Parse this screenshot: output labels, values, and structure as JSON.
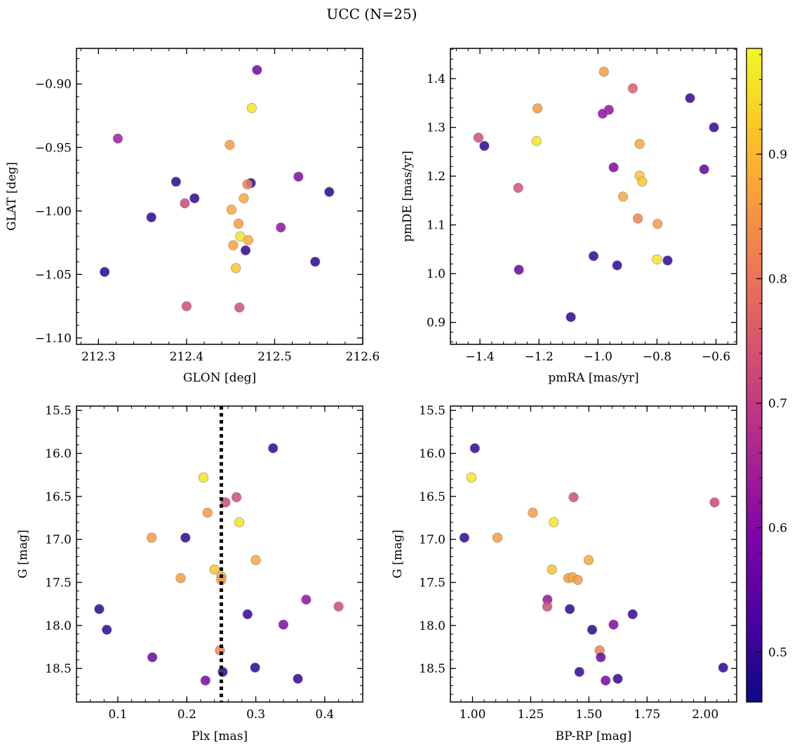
{
  "title": "UCC (N=25)",
  "chart_data": [
    {
      "type": "scatter",
      "xlabel": "GLON [deg]",
      "ylabel": "GLAT [deg]",
      "xlim": [
        212.275,
        212.6
      ],
      "ylim": [
        -1.105,
        -0.872
      ],
      "xticks": [
        212.3,
        212.4,
        212.5,
        212.6
      ],
      "xtick_labels": [
        "212.3",
        "212.4",
        "212.5",
        "212.6"
      ],
      "yticks": [
        -0.9,
        -0.95,
        -1.0,
        -1.05,
        -1.1
      ],
      "ytick_labels": [
        "−0.90",
        "−0.95",
        "−1.00",
        "−1.05",
        "−1.10"
      ],
      "points": [
        {
          "x": 212.48,
          "y": -0.889,
          "c": 0.58
        },
        {
          "x": 212.474,
          "y": -0.919,
          "c": 0.96
        },
        {
          "x": 212.322,
          "y": -0.943,
          "c": 0.64
        },
        {
          "x": 212.449,
          "y": -0.948,
          "c": 0.86
        },
        {
          "x": 212.388,
          "y": -0.977,
          "c": 0.49
        },
        {
          "x": 212.473,
          "y": -0.978,
          "c": 0.5
        },
        {
          "x": 212.469,
          "y": -0.979,
          "c": 0.82
        },
        {
          "x": 212.527,
          "y": -0.973,
          "c": 0.6
        },
        {
          "x": 212.409,
          "y": -0.99,
          "c": 0.5
        },
        {
          "x": 212.465,
          "y": -0.99,
          "c": 0.88
        },
        {
          "x": 212.398,
          "y": -0.994,
          "c": 0.72
        },
        {
          "x": 212.451,
          "y": -0.999,
          "c": 0.88
        },
        {
          "x": 212.562,
          "y": -0.985,
          "c": 0.49
        },
        {
          "x": 212.36,
          "y": -1.005,
          "c": 0.49
        },
        {
          "x": 212.459,
          "y": -1.01,
          "c": 0.86
        },
        {
          "x": 212.507,
          "y": -1.013,
          "c": 0.62
        },
        {
          "x": 212.461,
          "y": -1.02,
          "c": 0.96
        },
        {
          "x": 212.47,
          "y": -1.023,
          "c": 0.88
        },
        {
          "x": 212.453,
          "y": -1.027,
          "c": 0.87
        },
        {
          "x": 212.467,
          "y": -1.031,
          "c": 0.5
        },
        {
          "x": 212.456,
          "y": -1.045,
          "c": 0.92
        },
        {
          "x": 212.546,
          "y": -1.04,
          "c": 0.49
        },
        {
          "x": 212.307,
          "y": -1.048,
          "c": 0.49
        },
        {
          "x": 212.4,
          "y": -1.075,
          "c": 0.73
        },
        {
          "x": 212.46,
          "y": -1.076,
          "c": 0.73
        }
      ]
    },
    {
      "type": "scatter",
      "xlabel": "pmRA [mas/yr]",
      "ylabel": "pmDE [mas/yr]",
      "xlim": [
        -1.5,
        -0.53
      ],
      "ylim": [
        0.855,
        1.462
      ],
      "xticks": [
        -1.4,
        -1.2,
        -1.0,
        -0.8,
        -0.6
      ],
      "xtick_labels": [
        "−1.4",
        "−1.2",
        "−1.0",
        "−0.8",
        "−0.6"
      ],
      "yticks": [
        0.9,
        1.0,
        1.1,
        1.2,
        1.3,
        1.4
      ],
      "ytick_labels": [
        "0.9",
        "1.0",
        "1.1",
        "1.2",
        "1.3",
        "1.4"
      ],
      "points": [
        {
          "x": -0.98,
          "y": 1.414,
          "c": 0.86
        },
        {
          "x": -0.882,
          "y": 1.38,
          "c": 0.76
        },
        {
          "x": -0.688,
          "y": 1.36,
          "c": 0.5
        },
        {
          "x": -1.205,
          "y": 1.339,
          "c": 0.86
        },
        {
          "x": -0.963,
          "y": 1.336,
          "c": 0.62
        },
        {
          "x": -0.984,
          "y": 1.328,
          "c": 0.62
        },
        {
          "x": -0.607,
          "y": 1.3,
          "c": 0.5
        },
        {
          "x": -1.405,
          "y": 1.279,
          "c": 0.73
        },
        {
          "x": -1.385,
          "y": 1.262,
          "c": 0.49
        },
        {
          "x": -1.208,
          "y": 1.272,
          "c": 0.96
        },
        {
          "x": -0.859,
          "y": 1.266,
          "c": 0.88
        },
        {
          "x": -0.947,
          "y": 1.218,
          "c": 0.6
        },
        {
          "x": -0.64,
          "y": 1.214,
          "c": 0.55
        },
        {
          "x": -0.859,
          "y": 1.201,
          "c": 0.92
        },
        {
          "x": -0.85,
          "y": 1.189,
          "c": 0.92
        },
        {
          "x": -1.27,
          "y": 1.176,
          "c": 0.74
        },
        {
          "x": -0.915,
          "y": 1.158,
          "c": 0.88
        },
        {
          "x": -0.865,
          "y": 1.113,
          "c": 0.82
        },
        {
          "x": -0.798,
          "y": 1.102,
          "c": 0.86
        },
        {
          "x": -1.015,
          "y": 1.036,
          "c": 0.5
        },
        {
          "x": -0.8,
          "y": 1.029,
          "c": 0.96
        },
        {
          "x": -0.764,
          "y": 1.027,
          "c": 0.5
        },
        {
          "x": -0.935,
          "y": 1.017,
          "c": 0.5
        },
        {
          "x": -1.268,
          "y": 1.008,
          "c": 0.56
        },
        {
          "x": -1.092,
          "y": 0.911,
          "c": 0.49
        }
      ]
    },
    {
      "type": "scatter",
      "xlabel": "Plx [mas]",
      "ylabel": "G [mag]",
      "xlim": [
        0.04,
        0.455
      ],
      "ylim": [
        18.89,
        15.45
      ],
      "vline": 0.25,
      "xticks": [
        0.1,
        0.2,
        0.3,
        0.4
      ],
      "xtick_labels": [
        "0.1",
        "0.2",
        "0.3",
        "0.4"
      ],
      "yticks": [
        15.5,
        16.0,
        16.5,
        17.0,
        17.5,
        18.0,
        18.5
      ],
      "ytick_labels": [
        "15.5",
        "16.0",
        "16.5",
        "17.0",
        "17.5",
        "18.0",
        "18.5"
      ],
      "points": [
        {
          "x": 0.325,
          "y": 15.94,
          "c": 0.5
        },
        {
          "x": 0.224,
          "y": 16.28,
          "c": 0.96
        },
        {
          "x": 0.272,
          "y": 16.51,
          "c": 0.73
        },
        {
          "x": 0.256,
          "y": 16.57,
          "c": 0.72
        },
        {
          "x": 0.23,
          "y": 16.69,
          "c": 0.86
        },
        {
          "x": 0.276,
          "y": 16.8,
          "c": 0.96
        },
        {
          "x": 0.149,
          "y": 16.98,
          "c": 0.86
        },
        {
          "x": 0.198,
          "y": 16.98,
          "c": 0.5
        },
        {
          "x": 0.3,
          "y": 17.24,
          "c": 0.88
        },
        {
          "x": 0.24,
          "y": 17.35,
          "c": 0.92
        },
        {
          "x": 0.25,
          "y": 17.43,
          "c": 0.88
        },
        {
          "x": 0.25,
          "y": 17.47,
          "c": 0.86
        },
        {
          "x": 0.191,
          "y": 17.45,
          "c": 0.86
        },
        {
          "x": 0.373,
          "y": 17.7,
          "c": 0.62
        },
        {
          "x": 0.42,
          "y": 17.78,
          "c": 0.73
        },
        {
          "x": 0.073,
          "y": 17.81,
          "c": 0.49
        },
        {
          "x": 0.288,
          "y": 17.87,
          "c": 0.5
        },
        {
          "x": 0.34,
          "y": 17.99,
          "c": 0.6
        },
        {
          "x": 0.084,
          "y": 18.05,
          "c": 0.49
        },
        {
          "x": 0.248,
          "y": 18.29,
          "c": 0.82
        },
        {
          "x": 0.15,
          "y": 18.37,
          "c": 0.56
        },
        {
          "x": 0.299,
          "y": 18.49,
          "c": 0.49
        },
        {
          "x": 0.252,
          "y": 18.54,
          "c": 0.5
        },
        {
          "x": 0.361,
          "y": 18.62,
          "c": 0.5
        },
        {
          "x": 0.227,
          "y": 18.64,
          "c": 0.58
        }
      ]
    },
    {
      "type": "scatter",
      "xlabel": "BP-RP [mag]",
      "ylabel": "G [mag]",
      "xlim": [
        0.905,
        2.135
      ],
      "ylim": [
        18.89,
        15.45
      ],
      "xticks": [
        1.0,
        1.25,
        1.5,
        1.75,
        2.0
      ],
      "xtick_labels": [
        "1.00",
        "1.25",
        "1.50",
        "1.75",
        "2.00"
      ],
      "yticks": [
        15.5,
        16.0,
        16.5,
        17.0,
        17.5,
        18.0,
        18.5
      ],
      "ytick_labels": [
        "15.5",
        "16.0",
        "16.5",
        "17.0",
        "17.5",
        "18.0",
        "18.5"
      ],
      "points": [
        {
          "x": 1.01,
          "y": 15.94,
          "c": 0.5
        },
        {
          "x": 0.995,
          "y": 16.28,
          "c": 0.96
        },
        {
          "x": 1.434,
          "y": 16.51,
          "c": 0.73
        },
        {
          "x": 2.04,
          "y": 16.57,
          "c": 0.72
        },
        {
          "x": 1.259,
          "y": 16.69,
          "c": 0.86
        },
        {
          "x": 1.349,
          "y": 16.8,
          "c": 0.96
        },
        {
          "x": 0.965,
          "y": 16.98,
          "c": 0.5
        },
        {
          "x": 1.107,
          "y": 16.98,
          "c": 0.86
        },
        {
          "x": 1.499,
          "y": 17.24,
          "c": 0.88
        },
        {
          "x": 1.341,
          "y": 17.35,
          "c": 0.92
        },
        {
          "x": 1.412,
          "y": 17.45,
          "c": 0.86
        },
        {
          "x": 1.43,
          "y": 17.44,
          "c": 0.88
        },
        {
          "x": 1.452,
          "y": 17.47,
          "c": 0.86
        },
        {
          "x": 1.322,
          "y": 17.7,
          "c": 0.62
        },
        {
          "x": 1.321,
          "y": 17.78,
          "c": 0.73
        },
        {
          "x": 1.418,
          "y": 17.81,
          "c": 0.49
        },
        {
          "x": 1.688,
          "y": 17.87,
          "c": 0.5
        },
        {
          "x": 1.606,
          "y": 17.99,
          "c": 0.6
        },
        {
          "x": 1.514,
          "y": 18.05,
          "c": 0.49
        },
        {
          "x": 1.546,
          "y": 18.29,
          "c": 0.82
        },
        {
          "x": 1.551,
          "y": 18.37,
          "c": 0.56
        },
        {
          "x": 2.077,
          "y": 18.49,
          "c": 0.49
        },
        {
          "x": 1.459,
          "y": 18.54,
          "c": 0.5
        },
        {
          "x": 1.624,
          "y": 18.62,
          "c": 0.5
        },
        {
          "x": 1.572,
          "y": 18.64,
          "c": 0.58
        }
      ]
    }
  ],
  "colorbar": {
    "cmap": "plasma",
    "range": [
      0.46,
      0.985
    ],
    "ticks": [
      0.5,
      0.6,
      0.7,
      0.8,
      0.9
    ],
    "tick_labels": [
      "0.5",
      "0.6",
      "0.7",
      "0.8",
      "0.9"
    ]
  }
}
